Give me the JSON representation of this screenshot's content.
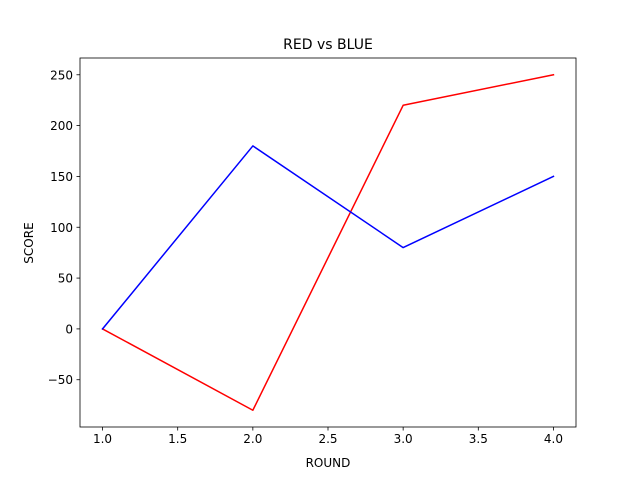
{
  "chart_data": {
    "type": "line",
    "title": "RED vs BLUE",
    "xlabel": "ROUND",
    "ylabel": "SCORE",
    "x": [
      1,
      2,
      3,
      4
    ],
    "xlim": [
      0.85,
      4.15
    ],
    "ylim": [
      -96.5,
      266.5
    ],
    "xticks": [
      1.0,
      1.5,
      2.0,
      2.5,
      3.0,
      3.5,
      4.0
    ],
    "xtick_labels": [
      "1.0",
      "1.5",
      "2.0",
      "2.5",
      "3.0",
      "3.5",
      "4.0"
    ],
    "yticks": [
      -50,
      0,
      50,
      100,
      150,
      200,
      250
    ],
    "ytick_labels": [
      "−50",
      "0",
      "50",
      "100",
      "150",
      "200",
      "250"
    ],
    "grid": false,
    "series": [
      {
        "color": "#ff0000",
        "values": [
          0,
          -80,
          220,
          250
        ]
      },
      {
        "color": "#0000ff",
        "values": [
          0,
          180,
          80,
          150
        ]
      }
    ]
  }
}
